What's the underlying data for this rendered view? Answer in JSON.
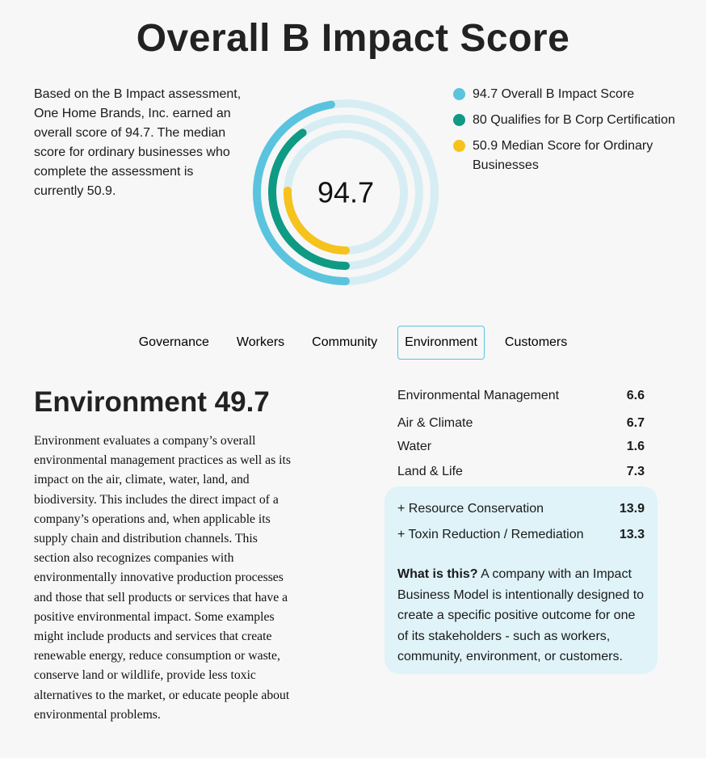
{
  "header": {
    "title": "Overall B Impact Score"
  },
  "intro": {
    "text": "Based on the B Impact assessment, One Home Brands, Inc. earned an overall score of 94.7. The median score for ordinary businesses who complete the assessment is currently 50.9."
  },
  "score_chart": {
    "center_label": "94.7",
    "max": 200,
    "track_color": "#d6edf3",
    "rings": [
      {
        "value": 94.7,
        "color": "#5ac4de"
      },
      {
        "value": 80,
        "color": "#0f9a84"
      },
      {
        "value": 50.9,
        "color": "#f6c21c"
      }
    ]
  },
  "legend": [
    {
      "label": "94.7 Overall B Impact Score",
      "color": "#5ac4de"
    },
    {
      "label": "80 Qualifies for B Corp Certification",
      "color": "#0f9a84"
    },
    {
      "label": "50.9 Median Score for Ordinary Businesses",
      "color": "#f6c21c"
    }
  ],
  "tabs": [
    {
      "label": "Governance",
      "active": false
    },
    {
      "label": "Workers",
      "active": false
    },
    {
      "label": "Community",
      "active": false
    },
    {
      "label": "Environment",
      "active": true
    },
    {
      "label": "Customers",
      "active": false
    }
  ],
  "section": {
    "title": "Environment 49.7",
    "description": "Environment evaluates a company’s overall environmental management practices as well as its impact on the air, climate, water, land, and biodiversity. This includes the direct impact of a company’s operations and, when applicable its supply chain and distribution channels. This section also recognizes companies with environmentally innovative production processes and those that sell products or services that have a positive environmental impact. Some examples might include products and services that create renewable energy, reduce consumption or waste, conserve land or wildlife, provide less toxic alternatives to the market, or educate people about environmental problems."
  },
  "metrics": [
    {
      "label": "Environmental Management",
      "value": "6.6"
    },
    {
      "label": "Air & Climate",
      "value": "6.7"
    },
    {
      "label": "Water",
      "value": "1.6"
    },
    {
      "label": "Land & Life",
      "value": "7.3"
    }
  ],
  "impact_models": [
    {
      "label": "+ Resource Conservation",
      "value": "13.9"
    },
    {
      "label": "+ Toxin Reduction / Remediation",
      "value": "13.3"
    }
  ],
  "impact_note": {
    "bold": "What is this?",
    "text": " A company with an Impact Business Model is intentionally designed to create a specific positive outcome for one of its stakeholders - such as workers, community, environment, or customers."
  }
}
